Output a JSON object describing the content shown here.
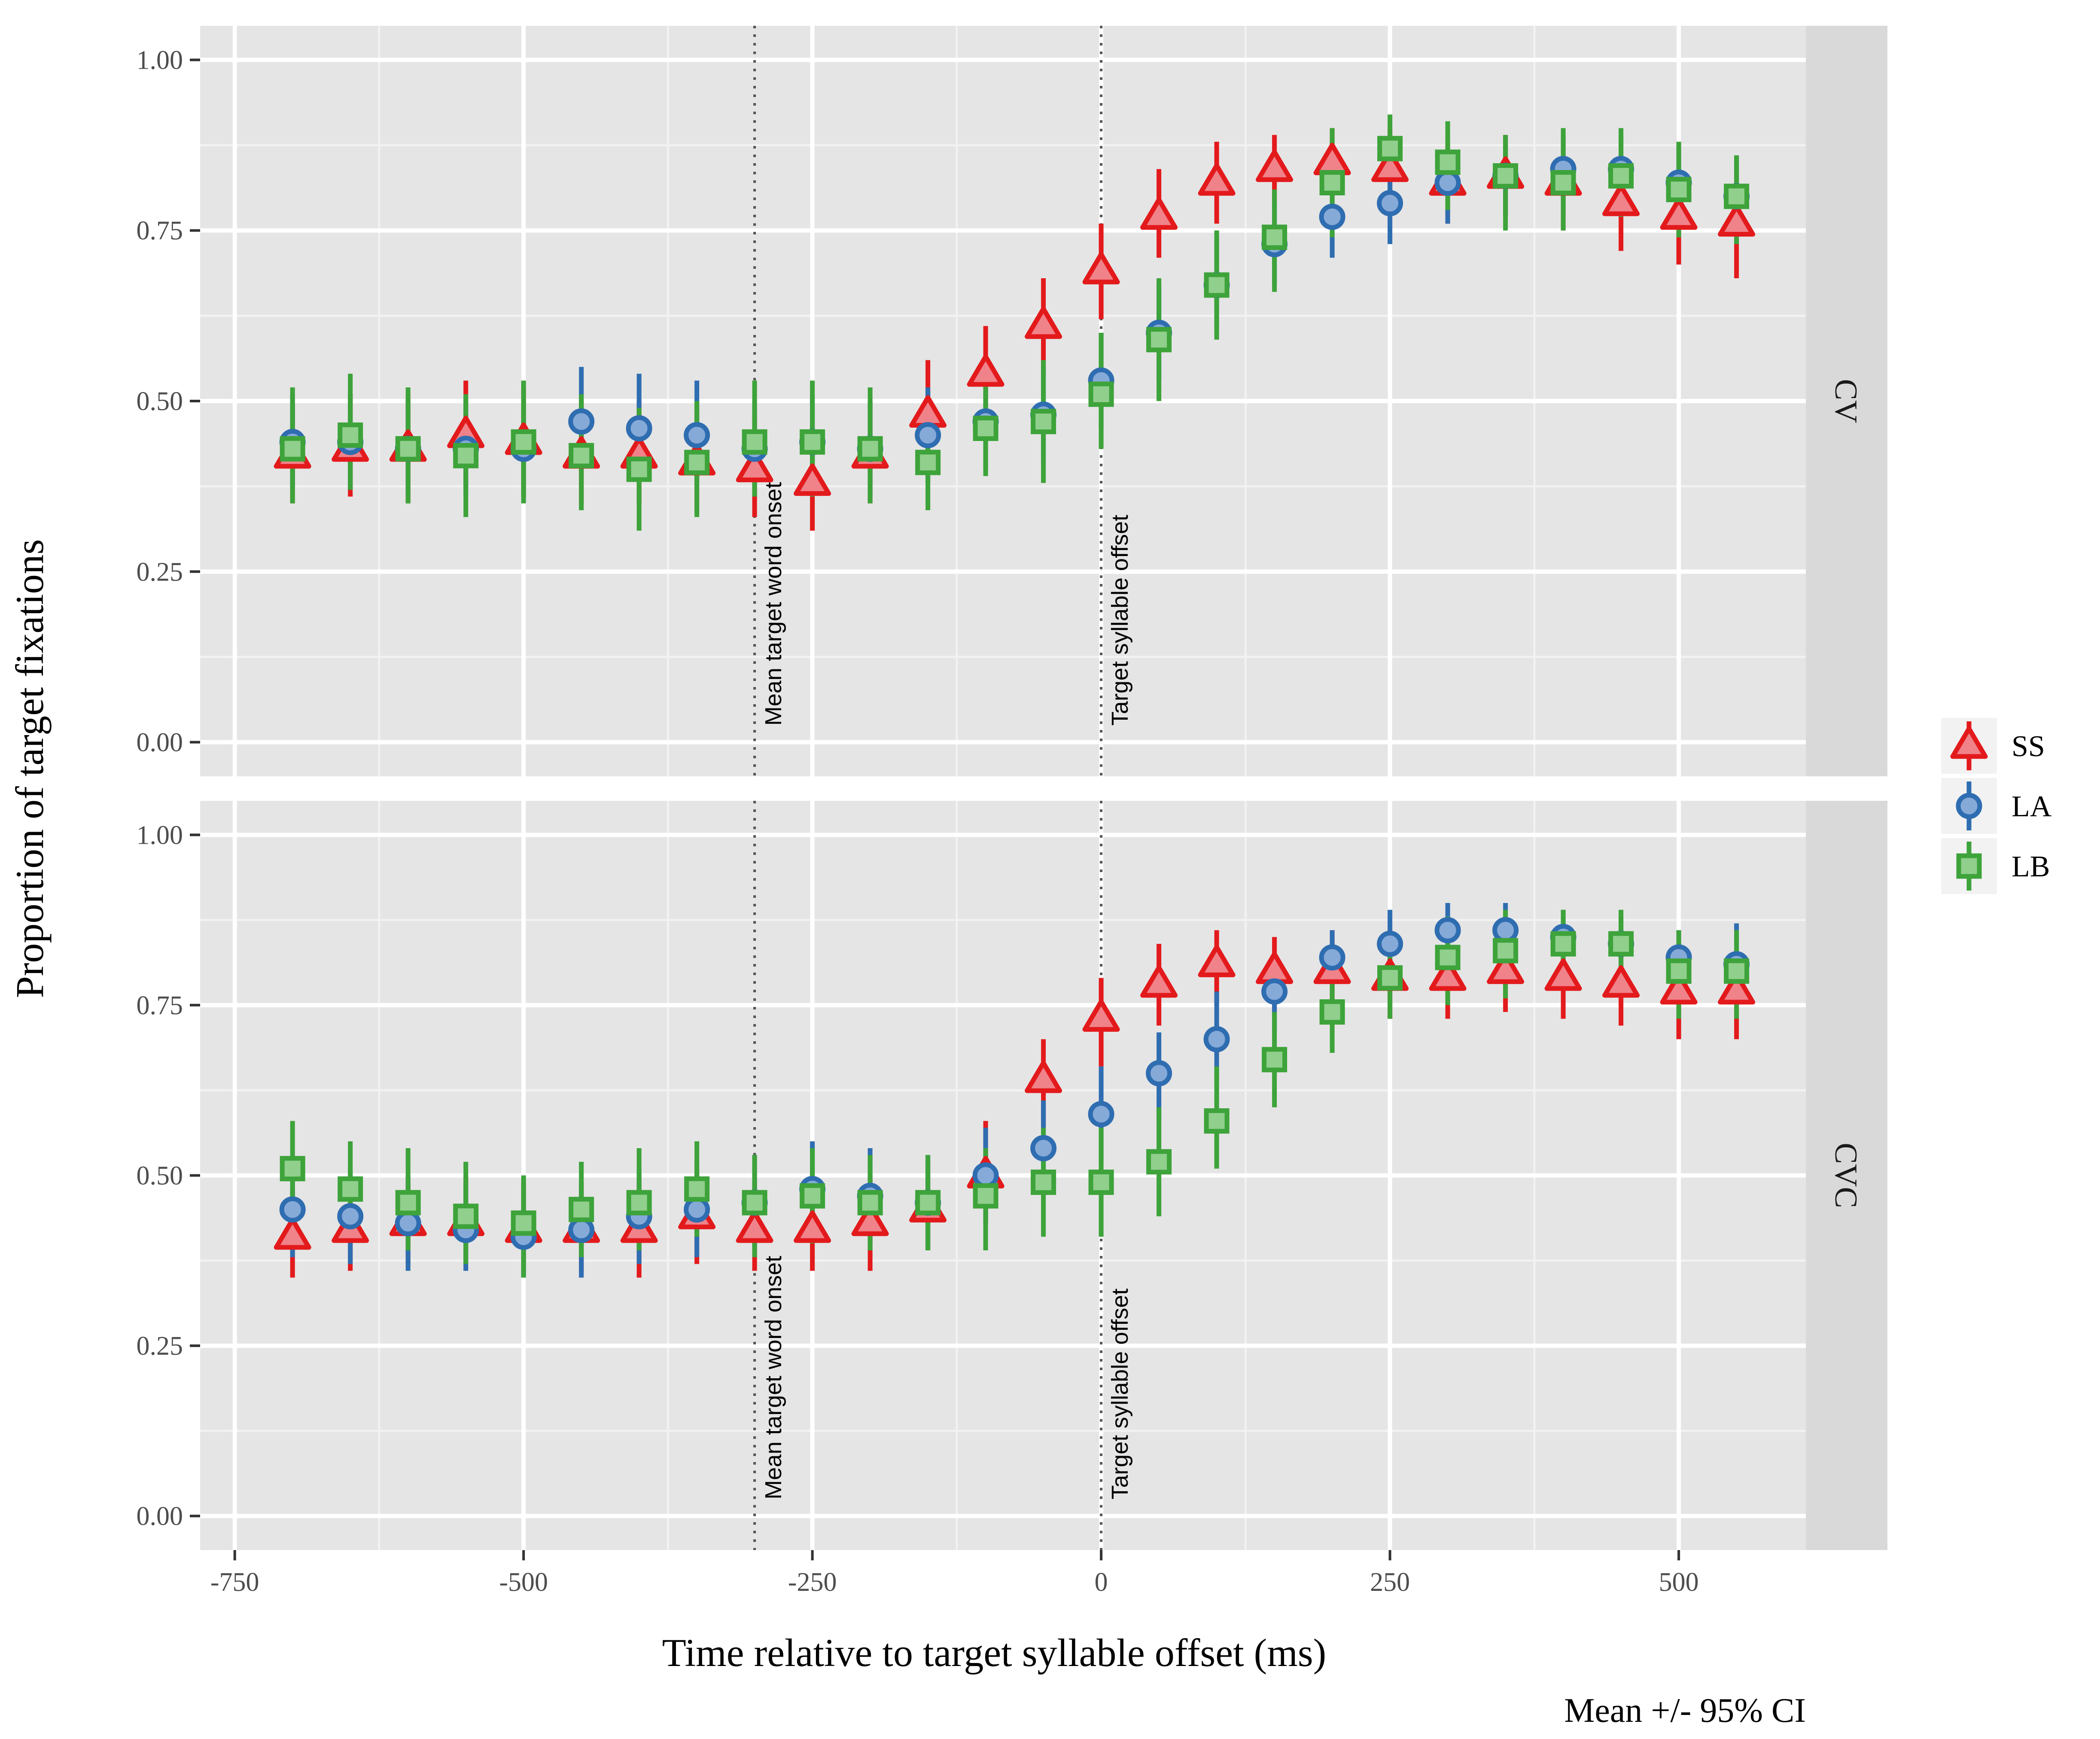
{
  "chart_data": {
    "type": "scatter",
    "xlabel": "Time relative to target syllable offset (ms)",
    "ylabel": "Proportion of target fixations",
    "caption": "Mean +/- 95% CI",
    "xlim": [
      -780,
      610
    ],
    "ylim": [
      -0.05,
      1.05
    ],
    "x_ticks": [
      -750,
      -500,
      -250,
      0,
      250,
      500
    ],
    "x_tick_labels": [
      "-750",
      "-500",
      "-250",
      "0",
      "250",
      "500"
    ],
    "y_ticks": [
      0,
      0.25,
      0.5,
      0.75,
      1
    ],
    "y_tick_labels": [
      "0.00",
      "0.25",
      "0.50",
      "0.75",
      "1.00"
    ],
    "grid": true,
    "legend_position": "right",
    "reference_lines": [
      {
        "x": -300,
        "label": "Mean target word onset"
      },
      {
        "x": 0,
        "label": "Target syllable offset"
      }
    ],
    "x": [
      -700,
      -650,
      -600,
      -550,
      -500,
      -450,
      -400,
      -350,
      -300,
      -250,
      -200,
      -150,
      -100,
      -50,
      0,
      50,
      100,
      150,
      200,
      250,
      300,
      350,
      400,
      450,
      500,
      550
    ],
    "series_styles": [
      {
        "name": "SS",
        "color": "#e31a1c",
        "fill": "#f0828a",
        "shape": "triangle"
      },
      {
        "name": "LA",
        "color": "#2f6db1",
        "fill": "#86aad8",
        "shape": "circle"
      },
      {
        "name": "LB",
        "color": "#3da33a",
        "fill": "#91cf8d",
        "shape": "square"
      }
    ],
    "panels": [
      {
        "strip_label": "CV",
        "series": [
          {
            "name": "SS",
            "values": [
              0.42,
              0.43,
              0.43,
              0.45,
              0.44,
              0.42,
              0.42,
              0.41,
              0.4,
              0.38,
              0.42,
              0.48,
              0.54,
              0.61,
              0.69,
              0.77,
              0.82,
              0.84,
              0.85,
              0.84,
              0.82,
              0.83,
              0.82,
              0.79,
              0.77,
              0.76
            ],
            "lower": [
              0.35,
              0.36,
              0.35,
              0.37,
              0.36,
              0.35,
              0.35,
              0.34,
              0.33,
              0.31,
              0.35,
              0.41,
              0.47,
              0.54,
              0.62,
              0.71,
              0.76,
              0.79,
              0.8,
              0.78,
              0.76,
              0.77,
              0.75,
              0.72,
              0.7,
              0.68
            ],
            "upper": [
              0.5,
              0.51,
              0.51,
              0.53,
              0.52,
              0.5,
              0.5,
              0.49,
              0.48,
              0.46,
              0.5,
              0.56,
              0.61,
              0.68,
              0.76,
              0.84,
              0.88,
              0.89,
              0.9,
              0.9,
              0.88,
              0.89,
              0.88,
              0.86,
              0.84,
              0.84
            ]
          },
          {
            "name": "LA",
            "values": [
              0.44,
              0.44,
              0.43,
              0.43,
              0.43,
              0.47,
              0.46,
              0.45,
              0.43,
              0.44,
              0.43,
              0.45,
              0.47,
              0.48,
              0.53,
              0.6,
              0.67,
              0.73,
              0.77,
              0.79,
              0.82,
              0.83,
              0.84,
              0.84,
              0.82,
              0.8
            ],
            "lower": [
              0.37,
              0.37,
              0.36,
              0.36,
              0.36,
              0.4,
              0.39,
              0.38,
              0.36,
              0.37,
              0.36,
              0.38,
              0.4,
              0.41,
              0.46,
              0.53,
              0.61,
              0.67,
              0.71,
              0.73,
              0.76,
              0.77,
              0.78,
              0.78,
              0.76,
              0.74
            ],
            "upper": [
              0.51,
              0.51,
              0.5,
              0.5,
              0.5,
              0.55,
              0.54,
              0.53,
              0.5,
              0.51,
              0.5,
              0.52,
              0.54,
              0.55,
              0.6,
              0.67,
              0.74,
              0.79,
              0.83,
              0.85,
              0.87,
              0.88,
              0.89,
              0.89,
              0.87,
              0.86
            ]
          },
          {
            "name": "LB",
            "values": [
              0.43,
              0.45,
              0.43,
              0.42,
              0.44,
              0.42,
              0.4,
              0.41,
              0.44,
              0.44,
              0.43,
              0.41,
              0.46,
              0.47,
              0.51,
              0.59,
              0.67,
              0.74,
              0.82,
              0.87,
              0.85,
              0.83,
              0.82,
              0.83,
              0.81,
              0.8
            ],
            "lower": [
              0.35,
              0.37,
              0.35,
              0.33,
              0.35,
              0.34,
              0.31,
              0.33,
              0.36,
              0.36,
              0.35,
              0.34,
              0.39,
              0.38,
              0.43,
              0.5,
              0.59,
              0.66,
              0.74,
              0.83,
              0.78,
              0.75,
              0.75,
              0.77,
              0.74,
              0.73
            ],
            "upper": [
              0.52,
              0.54,
              0.52,
              0.51,
              0.53,
              0.51,
              0.49,
              0.5,
              0.53,
              0.53,
              0.52,
              0.5,
              0.54,
              0.56,
              0.6,
              0.68,
              0.75,
              0.81,
              0.9,
              0.92,
              0.91,
              0.89,
              0.9,
              0.9,
              0.88,
              0.86
            ]
          }
        ]
      },
      {
        "strip_label": "CVC",
        "series": [
          {
            "name": "SS",
            "values": [
              0.41,
              0.42,
              0.43,
              0.43,
              0.42,
              0.42,
              0.42,
              0.44,
              0.42,
              0.42,
              0.43,
              0.45,
              0.5,
              0.64,
              0.73,
              0.78,
              0.81,
              0.8,
              0.8,
              0.79,
              0.79,
              0.8,
              0.79,
              0.78,
              0.77,
              0.77
            ],
            "lower": [
              0.35,
              0.36,
              0.37,
              0.37,
              0.36,
              0.36,
              0.35,
              0.37,
              0.36,
              0.36,
              0.36,
              0.39,
              0.43,
              0.57,
              0.66,
              0.72,
              0.75,
              0.74,
              0.74,
              0.73,
              0.73,
              0.74,
              0.73,
              0.72,
              0.7,
              0.7
            ],
            "upper": [
              0.48,
              0.48,
              0.49,
              0.5,
              0.49,
              0.49,
              0.49,
              0.51,
              0.49,
              0.49,
              0.5,
              0.52,
              0.58,
              0.7,
              0.79,
              0.84,
              0.86,
              0.85,
              0.86,
              0.85,
              0.85,
              0.86,
              0.85,
              0.84,
              0.83,
              0.83
            ]
          },
          {
            "name": "LA",
            "values": [
              0.45,
              0.44,
              0.43,
              0.42,
              0.41,
              0.42,
              0.44,
              0.45,
              0.46,
              0.48,
              0.47,
              0.46,
              0.5,
              0.54,
              0.59,
              0.65,
              0.7,
              0.77,
              0.82,
              0.84,
              0.86,
              0.86,
              0.85,
              0.84,
              0.82,
              0.81
            ],
            "lower": [
              0.38,
              0.37,
              0.36,
              0.36,
              0.35,
              0.35,
              0.37,
              0.38,
              0.39,
              0.41,
              0.4,
              0.39,
              0.43,
              0.47,
              0.52,
              0.58,
              0.64,
              0.71,
              0.77,
              0.78,
              0.8,
              0.81,
              0.79,
              0.78,
              0.76,
              0.75
            ],
            "upper": [
              0.52,
              0.51,
              0.5,
              0.49,
              0.48,
              0.49,
              0.51,
              0.52,
              0.53,
              0.55,
              0.54,
              0.53,
              0.57,
              0.61,
              0.66,
              0.71,
              0.77,
              0.82,
              0.86,
              0.89,
              0.9,
              0.9,
              0.89,
              0.88,
              0.86,
              0.87
            ]
          },
          {
            "name": "LB",
            "values": [
              0.51,
              0.48,
              0.46,
              0.44,
              0.43,
              0.45,
              0.46,
              0.48,
              0.46,
              0.47,
              0.46,
              0.46,
              0.47,
              0.49,
              0.49,
              0.52,
              0.58,
              0.67,
              0.74,
              0.79,
              0.82,
              0.83,
              0.84,
              0.84,
              0.8,
              0.8
            ],
            "lower": [
              0.44,
              0.41,
              0.39,
              0.37,
              0.35,
              0.38,
              0.39,
              0.41,
              0.38,
              0.4,
              0.39,
              0.39,
              0.39,
              0.41,
              0.41,
              0.44,
              0.51,
              0.6,
              0.68,
              0.73,
              0.75,
              0.76,
              0.78,
              0.77,
              0.73,
              0.73
            ],
            "upper": [
              0.58,
              0.55,
              0.54,
              0.52,
              0.5,
              0.52,
              0.54,
              0.55,
              0.53,
              0.54,
              0.53,
              0.53,
              0.54,
              0.57,
              0.57,
              0.6,
              0.66,
              0.74,
              0.8,
              0.85,
              0.88,
              0.89,
              0.89,
              0.89,
              0.86,
              0.86
            ]
          }
        ]
      }
    ]
  }
}
